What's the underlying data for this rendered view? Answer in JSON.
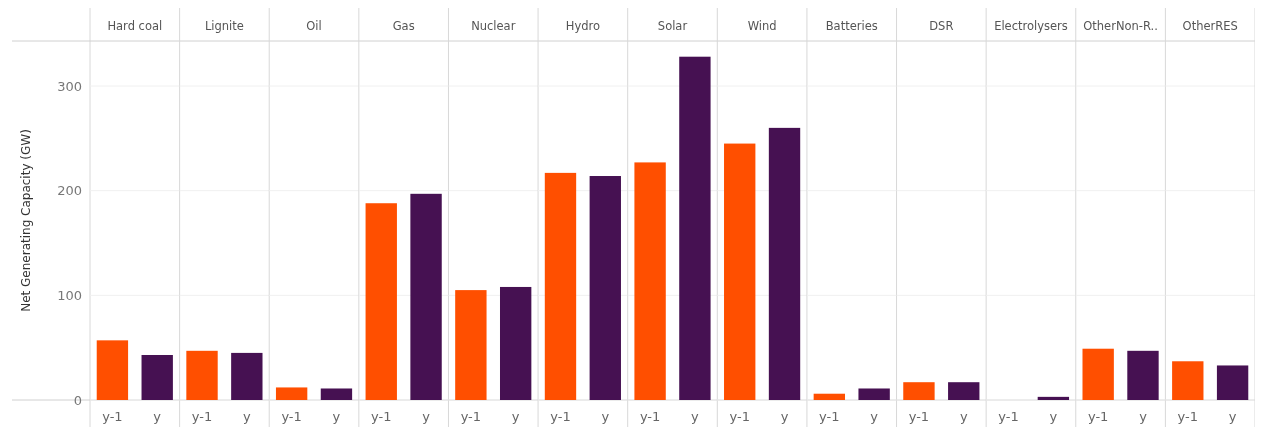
{
  "chart_data": [
    {
      "type": "bar",
      "title": "Hard coal",
      "ylabel": "Net Generating Capacity (GW)",
      "categories": [
        "y-1",
        "y"
      ],
      "values": [
        57,
        43
      ],
      "colors": [
        "#ff4f00",
        "#461152"
      ],
      "ylim": [
        0,
        343
      ],
      "yticks": [
        0,
        100,
        200,
        300
      ],
      "grid": "y"
    },
    {
      "type": "bar",
      "title": "Lignite",
      "categories": [
        "y-1",
        "y"
      ],
      "values": [
        47,
        45
      ],
      "colors": [
        "#ff4f00",
        "#461152"
      ],
      "ylim": [
        0,
        343
      ],
      "yticks": [
        0,
        100,
        200,
        300
      ],
      "grid": "y",
      "tick_labels": "x"
    },
    {
      "type": "bar",
      "title": "Oil",
      "categories": [
        "y-1",
        "y"
      ],
      "values": [
        12,
        11
      ],
      "colors": [
        "#ff4f00",
        "#461152"
      ],
      "ylim": [
        0,
        343
      ],
      "yticks": [
        0,
        100,
        200,
        300
      ],
      "grid": "y",
      "tick_labels": "x"
    },
    {
      "type": "bar",
      "title": "Gas",
      "categories": [
        "y-1",
        "y"
      ],
      "values": [
        188,
        197
      ],
      "colors": [
        "#ff4f00",
        "#461152"
      ],
      "ylim": [
        0,
        343
      ],
      "yticks": [
        0,
        100,
        200,
        300
      ],
      "grid": "y",
      "tick_labels": "x"
    },
    {
      "type": "bar",
      "title": "Nuclear",
      "categories": [
        "y-1",
        "y"
      ],
      "values": [
        105,
        108
      ],
      "colors": [
        "#ff4f00",
        "#461152"
      ],
      "ylim": [
        0,
        343
      ],
      "yticks": [
        0,
        100,
        200,
        300
      ],
      "grid": "y",
      "tick_labels": "x"
    },
    {
      "type": "bar",
      "title": "Hydro",
      "categories": [
        "y-1",
        "y"
      ],
      "values": [
        217,
        214
      ],
      "colors": [
        "#ff4f00",
        "#461152"
      ],
      "ylim": [
        0,
        343
      ],
      "yticks": [
        0,
        100,
        200,
        300
      ],
      "grid": "y",
      "tick_labels": "x"
    },
    {
      "type": "bar",
      "title": "Solar",
      "categories": [
        "y-1",
        "y"
      ],
      "values": [
        227,
        328
      ],
      "colors": [
        "#ff4f00",
        "#461152"
      ],
      "ylim": [
        0,
        343
      ],
      "yticks": [
        0,
        100,
        200,
        300
      ],
      "grid": "y",
      "tick_labels": "x"
    },
    {
      "type": "bar",
      "title": "Wind",
      "categories": [
        "y-1",
        "y"
      ],
      "values": [
        245,
        260
      ],
      "colors": [
        "#ff4f00",
        "#461152"
      ],
      "ylim": [
        0,
        343
      ],
      "yticks": [
        0,
        100,
        200,
        300
      ],
      "grid": "y",
      "tick_labels": "x"
    },
    {
      "type": "bar",
      "title": "Batteries",
      "categories": [
        "y-1",
        "y"
      ],
      "values": [
        6,
        11
      ],
      "colors": [
        "#ff4f00",
        "#461152"
      ],
      "ylim": [
        0,
        343
      ],
      "yticks": [
        0,
        100,
        200,
        300
      ],
      "grid": "y",
      "tick_labels": "x"
    },
    {
      "type": "bar",
      "title": "DSR",
      "categories": [
        "y-1",
        "y"
      ],
      "values": [
        17,
        17
      ],
      "colors": [
        "#ff4f00",
        "#461152"
      ],
      "ylim": [
        0,
        343
      ],
      "yticks": [
        0,
        100,
        200,
        300
      ],
      "grid": "y",
      "tick_labels": "x"
    },
    {
      "type": "bar",
      "title": "Electrolysers",
      "categories": [
        "y-1",
        "y"
      ],
      "values": [
        0,
        3
      ],
      "colors": [
        "#ff4f00",
        "#461152"
      ],
      "ylim": [
        0,
        343
      ],
      "yticks": [
        0,
        100,
        200,
        300
      ],
      "grid": "y",
      "tick_labels": "x"
    },
    {
      "type": "bar",
      "title": "OtherNon-R..",
      "categories": [
        "y-1",
        "y"
      ],
      "values": [
        49,
        47
      ],
      "colors": [
        "#ff4f00",
        "#461152"
      ],
      "ylim": [
        0,
        343
      ],
      "yticks": [
        0,
        100,
        200,
        300
      ],
      "grid": "y",
      "tick_labels": "x"
    },
    {
      "type": "bar",
      "title": "OtherRES",
      "categories": [
        "y-1",
        "y"
      ],
      "values": [
        37,
        33
      ],
      "colors": [
        "#ff4f00",
        "#461152"
      ],
      "ylim": [
        0,
        343
      ],
      "yticks": [
        0,
        100,
        200,
        300
      ],
      "grid": "y",
      "tick_labels": "x"
    }
  ]
}
